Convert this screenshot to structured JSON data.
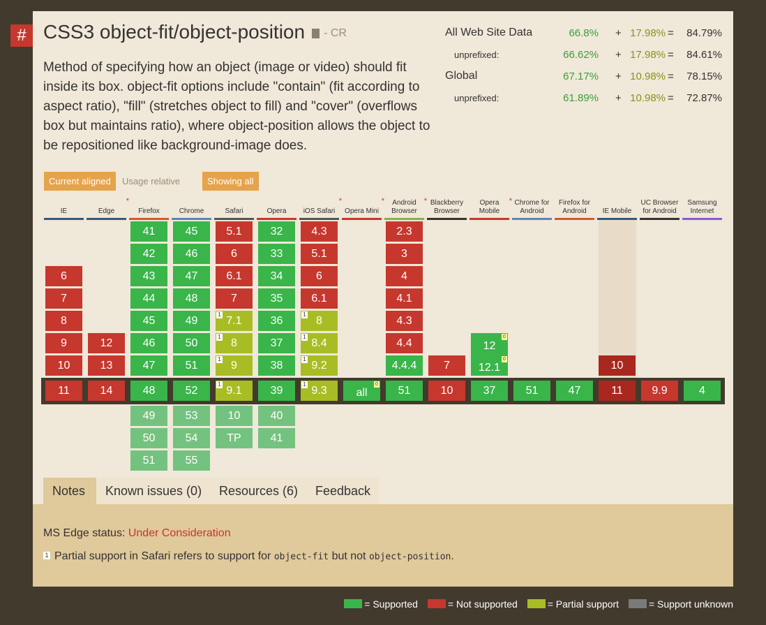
{
  "feature": {
    "hash": "#",
    "title": "CSS3 object-fit/object-position",
    "spec_status": "- CR",
    "description": "Method of specifying how an object (image or video) should fit inside its box. object-fit options include \"contain\" (fit according to aspect ratio), \"fill\" (stretches object to fill) and \"cover\" (overflows box but maintains ratio), where object-position allows the object to be repositioned like background-image does."
  },
  "stats": [
    {
      "label": "All Web Site Data",
      "supported": "66.8%",
      "plus": "+",
      "partial": "17.98%",
      "eq": "=",
      "total": "84.79%"
    },
    {
      "label": "unprefixed:",
      "supported": "66.62%",
      "plus": "+",
      "partial": "17.98%",
      "eq": "=",
      "total": "84.61%"
    },
    {
      "label": "Global",
      "supported": "67.17%",
      "plus": "+",
      "partial": "10.98%",
      "eq": "=",
      "total": "78.15%"
    },
    {
      "label": "unprefixed:",
      "supported": "61.89%",
      "plus": "+",
      "partial": "10.98%",
      "eq": "=",
      "total": "72.87%"
    }
  ],
  "buttons": {
    "current_aligned": "Current aligned",
    "usage_relative": "Usage relative",
    "showing_all": "Showing all"
  },
  "browsers": [
    "IE",
    "Edge",
    "Firefox",
    "Chrome",
    "Safari",
    "Opera",
    "iOS Safari",
    "Opera Mini",
    "Android Browser",
    "Blackberry Browser",
    "Opera Mobile",
    "Chrome for Android",
    "Firefox for Android",
    "IE Mobile",
    "UC Browser for Android",
    "Samsung Internet"
  ],
  "cells": {
    "ie": [
      "6",
      "7",
      "8",
      "9",
      "10",
      "11"
    ],
    "edge": [
      "12",
      "13",
      "14"
    ],
    "firefox": [
      "41",
      "42",
      "43",
      "44",
      "45",
      "46",
      "47",
      "48",
      "49",
      "50",
      "51"
    ],
    "chrome": [
      "45",
      "46",
      "47",
      "48",
      "49",
      "50",
      "51",
      "52",
      "53",
      "54",
      "55"
    ],
    "safari": [
      "5.1",
      "6",
      "6.1",
      "7",
      "7.1",
      "8",
      "9",
      "9.1",
      "10",
      "TP"
    ],
    "opera": [
      "32",
      "33",
      "34",
      "35",
      "36",
      "37",
      "38",
      "39",
      "40",
      "41"
    ],
    "ios": [
      "4.3",
      "5.1",
      "6",
      "6.1",
      "7.1",
      "8",
      "8.4",
      "9.2",
      "9.3"
    ],
    "operamini": [
      "all"
    ],
    "android": [
      "2.3",
      "3",
      "4",
      "4.1",
      "4.3",
      "4.4",
      "4.4.4",
      "51"
    ],
    "blackberry": [
      "7",
      "10"
    ],
    "operamobile": [
      "12",
      "12.1",
      "37"
    ],
    "chromeandroid": [
      "51"
    ],
    "firefoxandroid": [
      "47"
    ],
    "iemobile": [
      "10",
      "11"
    ],
    "uc": [
      "9.9"
    ],
    "samsung": [
      "4"
    ],
    "note_one": "1",
    "note_zero": "0"
  },
  "tabs": [
    "Notes",
    "Known issues (0)",
    "Resources (6)",
    "Feedback"
  ],
  "notes": {
    "edge_status_label": "MS Edge status:",
    "edge_status_link": "Under Consideration",
    "note_num": "1",
    "note_a": "Partial support in Safari refers to support for",
    "code1": "object-fit",
    "note_b": "but not",
    "code2": "object-position",
    "note_c": "."
  },
  "legend": [
    {
      "label": "= Supported",
      "color": "#39b54a"
    },
    {
      "label": "= Not supported",
      "color": "#c6372e"
    },
    {
      "label": "= Partial support",
      "color": "#a8bd24"
    },
    {
      "label": "= Support unknown",
      "color": "#7a7a7a"
    }
  ]
}
